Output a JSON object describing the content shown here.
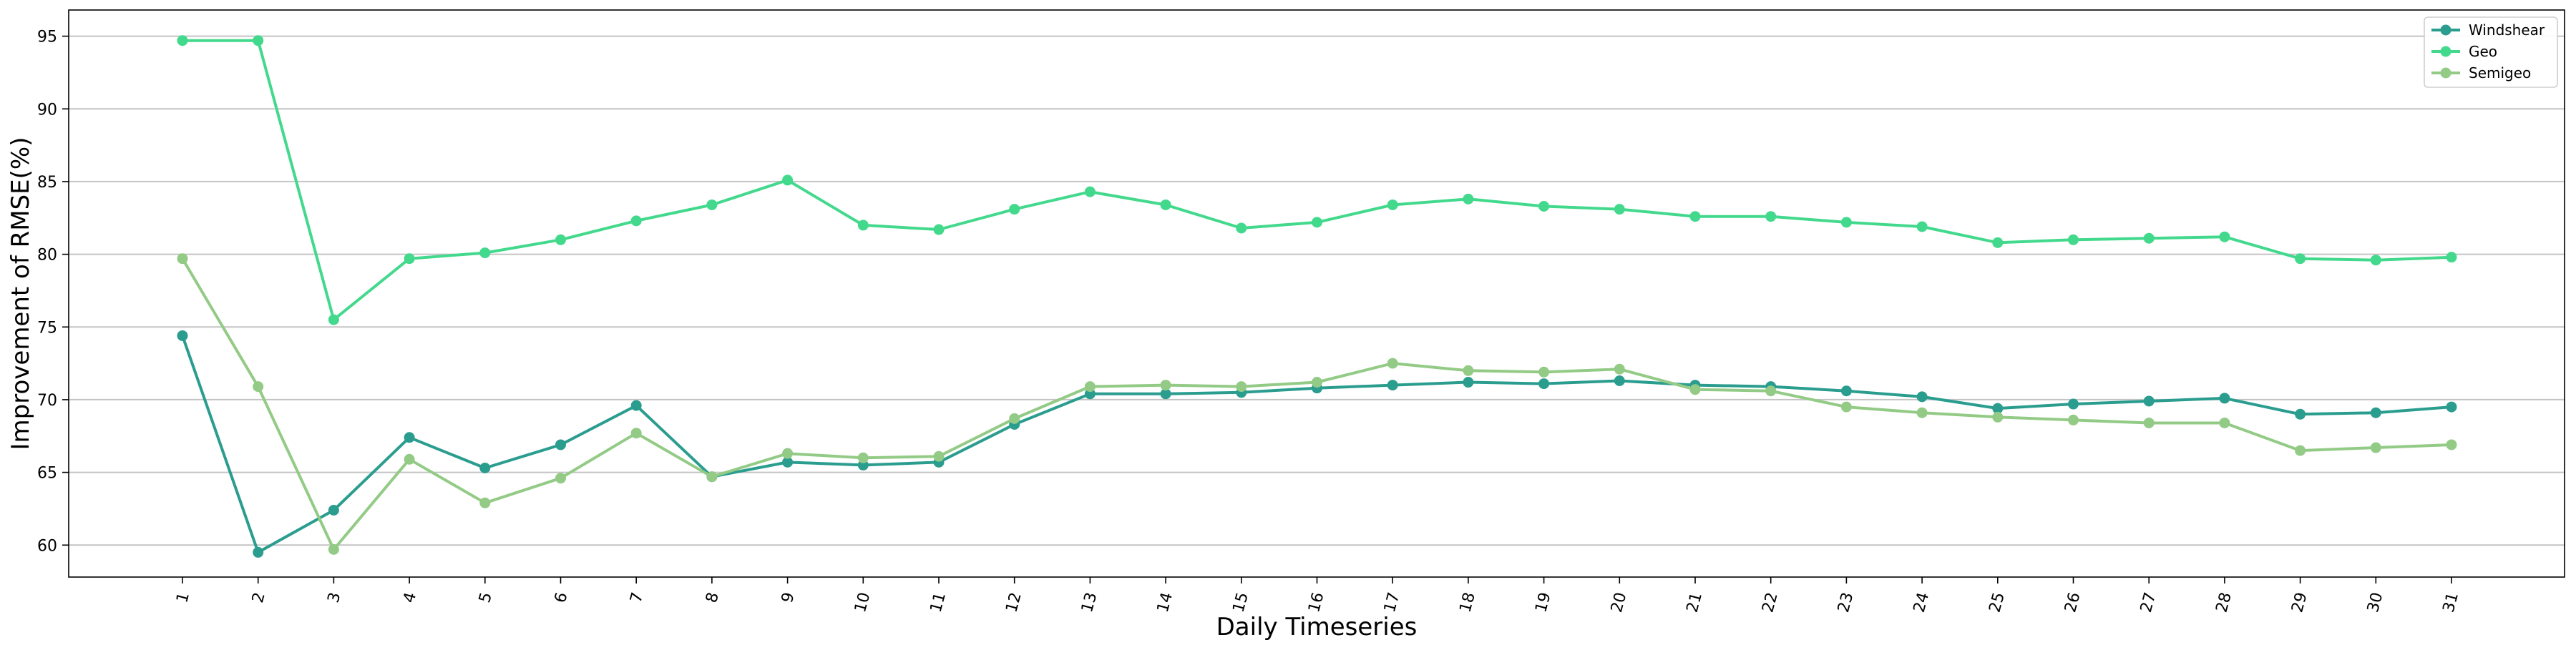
{
  "chart_data": {
    "type": "line",
    "xlabel": "Daily Timeseries",
    "ylabel": "Improvement of RMSE(%)",
    "categories": [
      "1",
      "2",
      "3",
      "4",
      "5",
      "6",
      "7",
      "8",
      "9",
      "10",
      "11",
      "12",
      "13",
      "14",
      "15",
      "16",
      "17",
      "18",
      "19",
      "20",
      "21",
      "22",
      "23",
      "24",
      "25",
      "26",
      "27",
      "28",
      "29",
      "30",
      "31"
    ],
    "ylim": [
      57.8,
      96.8
    ],
    "yticks": [
      60,
      65,
      70,
      75,
      80,
      85,
      90,
      95
    ],
    "grid": "horizontal",
    "legend_position": "top-right",
    "series": [
      {
        "name": "Windshear",
        "color": "#2a9d8f",
        "values": [
          74.4,
          59.5,
          62.4,
          67.4,
          65.3,
          66.9,
          69.6,
          64.7,
          65.7,
          65.5,
          65.7,
          68.3,
          70.4,
          70.4,
          70.5,
          70.8,
          71.0,
          71.2,
          71.1,
          71.3,
          71.0,
          70.9,
          70.6,
          70.2,
          69.4,
          69.7,
          69.9,
          70.1,
          69.0,
          69.1,
          69.5
        ]
      },
      {
        "name": "Geo",
        "color": "#43d98d",
        "values": [
          94.7,
          94.7,
          75.5,
          79.7,
          80.1,
          81.0,
          82.3,
          83.4,
          85.1,
          82.0,
          81.7,
          83.1,
          84.3,
          83.4,
          81.8,
          82.2,
          83.4,
          83.8,
          83.3,
          83.1,
          82.6,
          82.6,
          82.2,
          81.9,
          80.8,
          81.0,
          81.1,
          81.2,
          79.7,
          79.6,
          79.8
        ]
      },
      {
        "name": "Semigeo",
        "color": "#93cb86",
        "values": [
          79.7,
          70.9,
          59.7,
          65.9,
          62.9,
          64.6,
          67.7,
          64.7,
          66.3,
          66.0,
          66.1,
          68.7,
          70.9,
          71.0,
          70.9,
          71.2,
          72.5,
          72.0,
          71.9,
          72.1,
          70.7,
          70.6,
          69.5,
          69.1,
          68.8,
          68.6,
          68.4,
          68.4,
          66.5,
          66.7,
          66.9
        ]
      }
    ]
  }
}
